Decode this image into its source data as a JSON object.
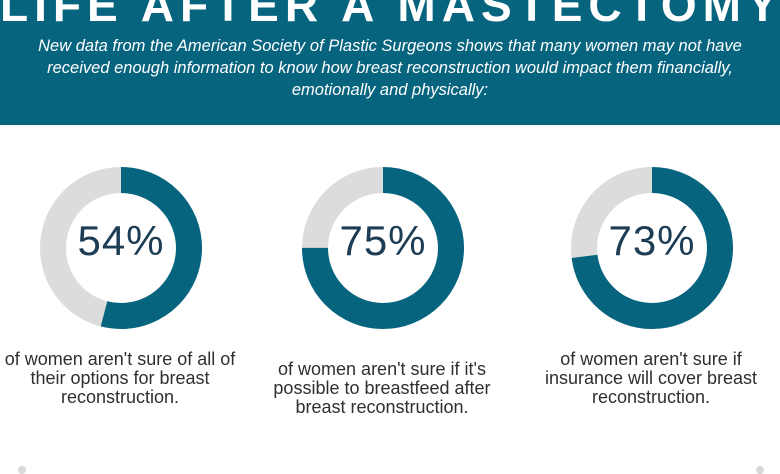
{
  "header": {
    "title": "LIFE AFTER A MASTECTOMY",
    "subtitle": "New data from the American Society of Plastic Surgeons shows that many women may not have received enough information to know how breast reconstruction would impact them financially, emotionally and physically:"
  },
  "colors": {
    "header_bg": "#07647f",
    "ring_fill": "#07647f",
    "ring_track": "#dcdcdc",
    "percent_text": "#1d3d55"
  },
  "stats": [
    {
      "percent_label": "54%",
      "value": 54,
      "caption": "of women aren't sure of all of their options for breast reconstruction."
    },
    {
      "percent_label": "75%",
      "value": 75,
      "caption": "of women aren't sure if it's possible to breastfeed after breast reconstruction."
    },
    {
      "percent_label": "73%",
      "value": 73,
      "caption": "of women aren't sure if insurance will cover breast reconstruction."
    }
  ]
}
